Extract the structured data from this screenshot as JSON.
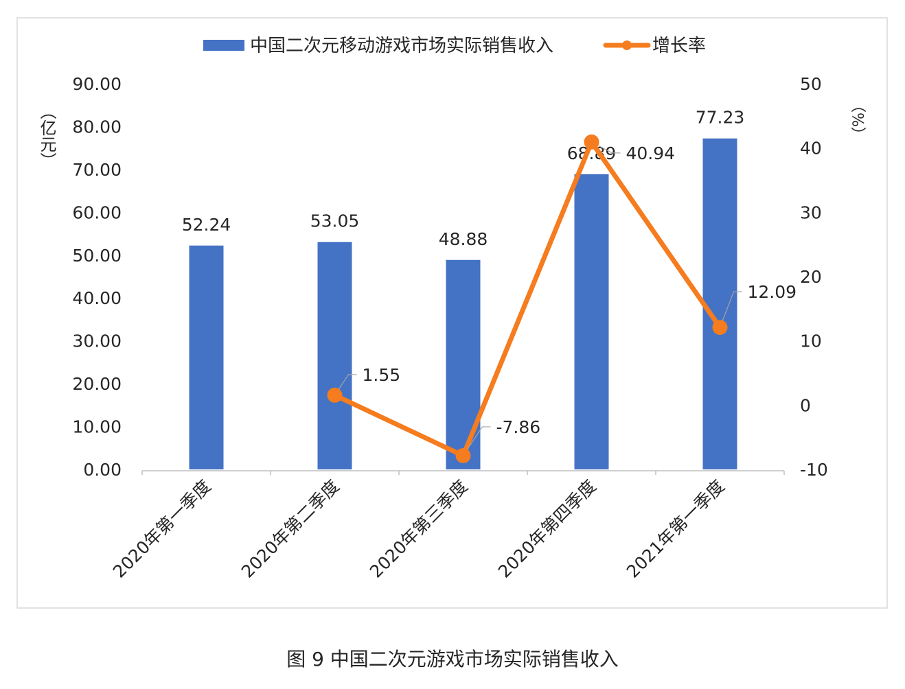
{
  "chart_data": {
    "type": "bar+line",
    "categories": [
      "2020年第一季度",
      "2020年第二季度",
      "2020年第三季度",
      "2020年第四季度",
      "2021年第一季度"
    ],
    "series": [
      {
        "name": "中国二次元移动游戏市场实际销售收入",
        "type": "bar",
        "axis": "left",
        "values": [
          52.24,
          53.05,
          48.88,
          68.89,
          77.23
        ],
        "color": "#4472C4"
      },
      {
        "name": "增长率",
        "type": "line",
        "axis": "right",
        "values": [
          null,
          1.55,
          -7.86,
          40.94,
          12.09
        ],
        "color": "#F57C1F"
      }
    ],
    "y_left": {
      "label": "（亿元）",
      "range": [
        0,
        90
      ],
      "ticks": [
        "0.00",
        "10.00",
        "20.00",
        "30.00",
        "40.00",
        "50.00",
        "60.00",
        "70.00",
        "80.00",
        "90.00"
      ]
    },
    "y_right": {
      "label": "（%）",
      "range": [
        -10,
        50
      ],
      "ticks": [
        "-10",
        "0",
        "10",
        "20",
        "30",
        "40",
        "50"
      ]
    },
    "grid": false,
    "legend": "top"
  },
  "caption": "图 9  中国二次元游戏市场实际销售收入"
}
